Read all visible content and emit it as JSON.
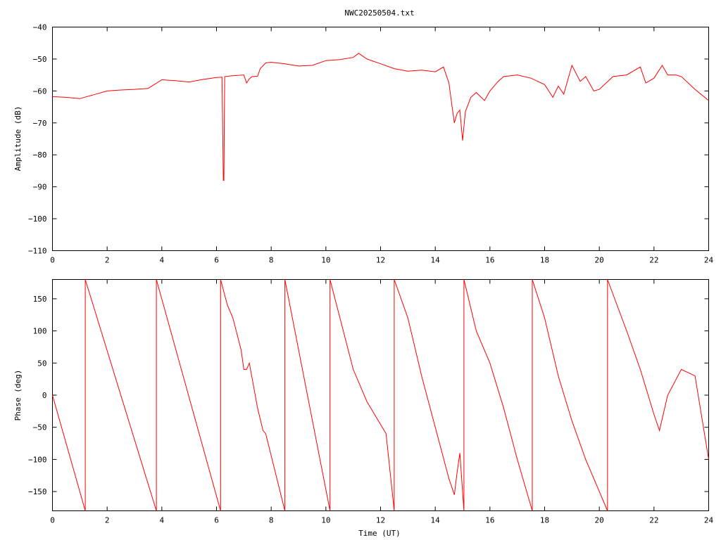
{
  "chart_data": [
    {
      "type": "line",
      "title": "NWC20250504.txt",
      "xlabel": "",
      "ylabel": "Amplitude (dB)",
      "xlim": [
        0,
        24
      ],
      "ylim": [
        -110,
        -40
      ],
      "xticks": [
        0,
        2,
        4,
        6,
        8,
        10,
        12,
        14,
        16,
        18,
        20,
        22,
        24
      ],
      "yticks": [
        -40,
        -50,
        -60,
        -70,
        -80,
        -90,
        -100,
        -110
      ],
      "grid": false,
      "line_color": "#ff0000",
      "series": [
        {
          "x": [
            0,
            0.5,
            1.0,
            1.5,
            2.0,
            2.5,
            3.0,
            3.5,
            4.0,
            4.5,
            5.0,
            5.5,
            6.0,
            6.2,
            6.25,
            6.27,
            6.3,
            6.5,
            7.0,
            7.1,
            7.2,
            7.3,
            7.5,
            7.6,
            7.8,
            8.0,
            8.5,
            9.0,
            9.5,
            10.0,
            10.5,
            11.0,
            11.2,
            11.5,
            12.0,
            12.5,
            13.0,
            13.5,
            14.0,
            14.3,
            14.5,
            14.6,
            14.7,
            14.8,
            14.9,
            15.0,
            15.1,
            15.3,
            15.5,
            15.8,
            16.0,
            16.3,
            16.5,
            17.0,
            17.5,
            18.0,
            18.3,
            18.5,
            18.7,
            19.0,
            19.3,
            19.5,
            19.8,
            20.0,
            20.5,
            21.0,
            21.5,
            21.7,
            22.0,
            22.3,
            22.5,
            22.8,
            23.0,
            23.5,
            24.0
          ],
          "y": [
            -61.8,
            -62.0,
            -62.4,
            -61.2,
            -60.0,
            -59.7,
            -59.5,
            -59.2,
            -56.5,
            -56.8,
            -57.2,
            -56.4,
            -55.8,
            -55.7,
            -88,
            -88,
            -55.5,
            -55.3,
            -55.0,
            -57.5,
            -56.2,
            -55.5,
            -55.4,
            -53.0,
            -51.2,
            -51.0,
            -51.5,
            -52.2,
            -52.0,
            -50.5,
            -50.2,
            -49.5,
            -48.2,
            -50.0,
            -51.5,
            -53.0,
            -53.8,
            -53.5,
            -54.0,
            -52.5,
            -57.5,
            -64.0,
            -70.0,
            -67.0,
            -66.0,
            -75.5,
            -66.5,
            -62.0,
            -60.5,
            -63.0,
            -60.0,
            -57.0,
            -55.5,
            -55.0,
            -56.0,
            -58.0,
            -62.0,
            -58.5,
            -61.0,
            -52.0,
            -57.0,
            -55.5,
            -60.0,
            -59.5,
            -55.5,
            -55.0,
            -52.5,
            -57.5,
            -56.0,
            -52.0,
            -55.0,
            -55.0,
            -55.5,
            -59.5,
            -63.0
          ]
        }
      ]
    },
    {
      "type": "line",
      "title": "",
      "xlabel": "Time (UT)",
      "ylabel": "Phase (deg)",
      "xlim": [
        0,
        24
      ],
      "ylim": [
        -180,
        180
      ],
      "xticks": [
        0,
        2,
        4,
        6,
        8,
        10,
        12,
        14,
        16,
        18,
        20,
        22,
        24
      ],
      "yticks": [
        150,
        100,
        50,
        0,
        -50,
        -100,
        -150
      ],
      "grid": false,
      "line_color": "#ff0000",
      "series": [
        {
          "x": [
            0,
            1.2,
            1.2,
            3.8,
            3.8,
            6.15,
            6.15,
            6.4,
            6.6,
            6.9,
            7.0,
            7.1,
            7.2,
            7.5,
            7.7,
            7.8,
            8.5,
            8.5,
            10.15,
            10.15,
            11.0,
            11.5,
            12.2,
            12.5,
            12.5,
            13.0,
            13.5,
            14.0,
            14.5,
            14.7,
            14.8,
            14.9,
            15.05,
            15.05,
            15.5,
            16.0,
            16.5,
            17.0,
            17.55,
            17.55,
            18.0,
            18.5,
            19.0,
            19.5,
            20.0,
            20.3,
            20.3,
            21.0,
            21.5,
            22.0,
            22.2,
            22.5,
            23.0,
            23.5,
            24.0
          ],
          "y": [
            0,
            -180,
            180,
            -180,
            180,
            -180,
            180,
            140,
            120,
            70,
            40,
            40,
            50,
            -20,
            -55,
            -60,
            -180,
            180,
            -180,
            180,
            40,
            -10,
            -60,
            -180,
            180,
            120,
            30,
            -50,
            -130,
            -155,
            -120,
            -90,
            -180,
            180,
            100,
            50,
            -20,
            -100,
            -180,
            180,
            120,
            30,
            -40,
            -100,
            -150,
            -180,
            180,
            100,
            40,
            -30,
            -55,
            0,
            40,
            30,
            -100
          ]
        }
      ]
    }
  ]
}
